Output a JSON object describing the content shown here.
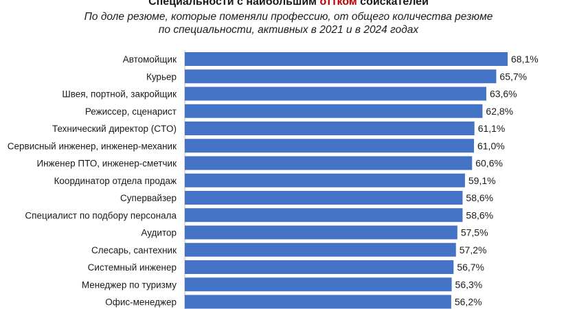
{
  "title": {
    "before": "Специальности с наибольшим ",
    "highlight": "оттком",
    "after": " соискателей"
  },
  "subtitle": {
    "line1": "По доле резюме, которые поменяли профессию, от общего количества резюме",
    "line2": "по специальности, активных в 2021 и в 2024 годах"
  },
  "colors": {
    "bar": "#4472c4",
    "highlight": "#c00000"
  },
  "chart_data": {
    "type": "bar",
    "orientation": "horizontal",
    "categories": [
      "Автомойщик",
      "Курьер",
      "Швея, портной, закройщик",
      "Режиссер, сценарист",
      "Технический директор (CTO)",
      "Сервисный инженер, инженер-механик",
      "Инженер ПТО, инженер-сметчик",
      "Координатор отдела продаж",
      "Супервайзер",
      "Специалист по подбору персонала",
      "Аудитор",
      "Слесарь, сантехник",
      "Системный инженер",
      "Менеджер по туризму",
      "Офис-менеджер"
    ],
    "values": [
      68.1,
      65.7,
      63.6,
      62.8,
      61.1,
      61.0,
      60.6,
      59.1,
      58.6,
      58.6,
      57.5,
      57.2,
      56.7,
      56.3,
      56.2
    ],
    "value_labels": [
      "68,1%",
      "65,7%",
      "63,6%",
      "62,8%",
      "61,1%",
      "61,0%",
      "60,6%",
      "59,1%",
      "58,6%",
      "58,6%",
      "57,5%",
      "57,2%",
      "56,7%",
      "56,3%",
      "56,2%"
    ],
    "xlim": [
      0,
      68.1
    ],
    "grid": false,
    "legend": "none"
  }
}
